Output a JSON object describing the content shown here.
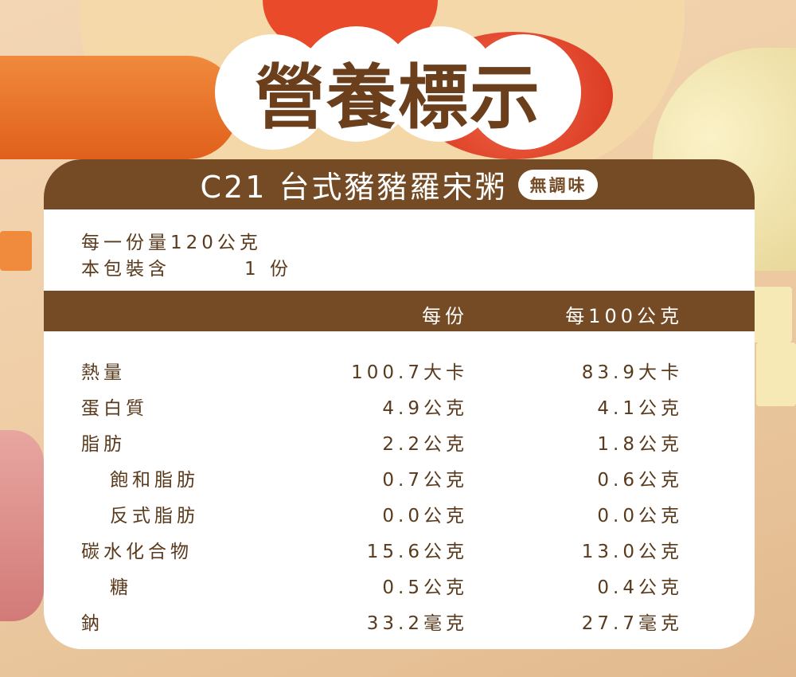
{
  "title": "營養標示",
  "product": {
    "name": "C21 台式豬豬羅宋粥",
    "badge": "無調味"
  },
  "serving": {
    "per_serving_label": "每一份量120公克",
    "servings_label": "本包裝含",
    "servings_value": "1 份"
  },
  "columns": {
    "per_serving": "每份",
    "per_100g": "每100公克"
  },
  "rows": [
    {
      "label": "熱量",
      "per_serving": "100.7大卡",
      "per_100g": "83.9大卡",
      "indent": false
    },
    {
      "label": "蛋白質",
      "per_serving": "4.9公克",
      "per_100g": "4.1公克",
      "indent": false
    },
    {
      "label": "脂肪",
      "per_serving": "2.2公克",
      "per_100g": "1.8公克",
      "indent": false
    },
    {
      "label": "飽和脂肪",
      "per_serving": "0.7公克",
      "per_100g": "0.6公克",
      "indent": true
    },
    {
      "label": "反式脂肪",
      "per_serving": "0.0公克",
      "per_100g": "0.0公克",
      "indent": true
    },
    {
      "label": "碳水化合物",
      "per_serving": "15.6公克",
      "per_100g": "13.0公克",
      "indent": false
    },
    {
      "label": "糖",
      "per_serving": "0.5公克",
      "per_100g": "0.4公克",
      "indent": true
    },
    {
      "label": "鈉",
      "per_serving": "33.2毫克",
      "per_100g": "27.7毫克",
      "indent": false
    }
  ],
  "colors": {
    "brown": "#744b25",
    "text": "#5a3a1c"
  }
}
